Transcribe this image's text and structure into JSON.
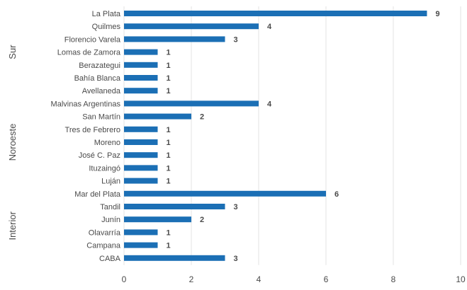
{
  "chart_data": {
    "type": "bar",
    "orientation": "horizontal",
    "groups": [
      {
        "label": "Sur",
        "first": 0,
        "last": 6
      },
      {
        "label": "Noroeste",
        "first": 7,
        "last": 13
      },
      {
        "label": "Interior",
        "first": 14,
        "last": 19
      }
    ],
    "categories": [
      "La Plata",
      "Quilmes",
      "Florencio Varela",
      "Lomas de Zamora",
      "Berazategui",
      "Bahía Blanca",
      "Avellaneda",
      "Malvinas Argentinas",
      "San Martín",
      "Tres de Febrero",
      "Moreno",
      "José C. Paz",
      "Ituzaingó",
      "Luján",
      "Mar del Plata",
      "Tandil",
      "Junín",
      "Olavarría",
      "Campana",
      "CABA"
    ],
    "values": [
      9,
      4,
      3,
      1,
      1,
      1,
      1,
      4,
      2,
      1,
      1,
      1,
      1,
      1,
      6,
      3,
      2,
      1,
      1,
      3
    ],
    "xlim": [
      0,
      10
    ],
    "xticks": [
      0,
      2,
      4,
      6,
      8,
      10
    ],
    "grid": true,
    "bar_color": "#1b6fb5"
  }
}
